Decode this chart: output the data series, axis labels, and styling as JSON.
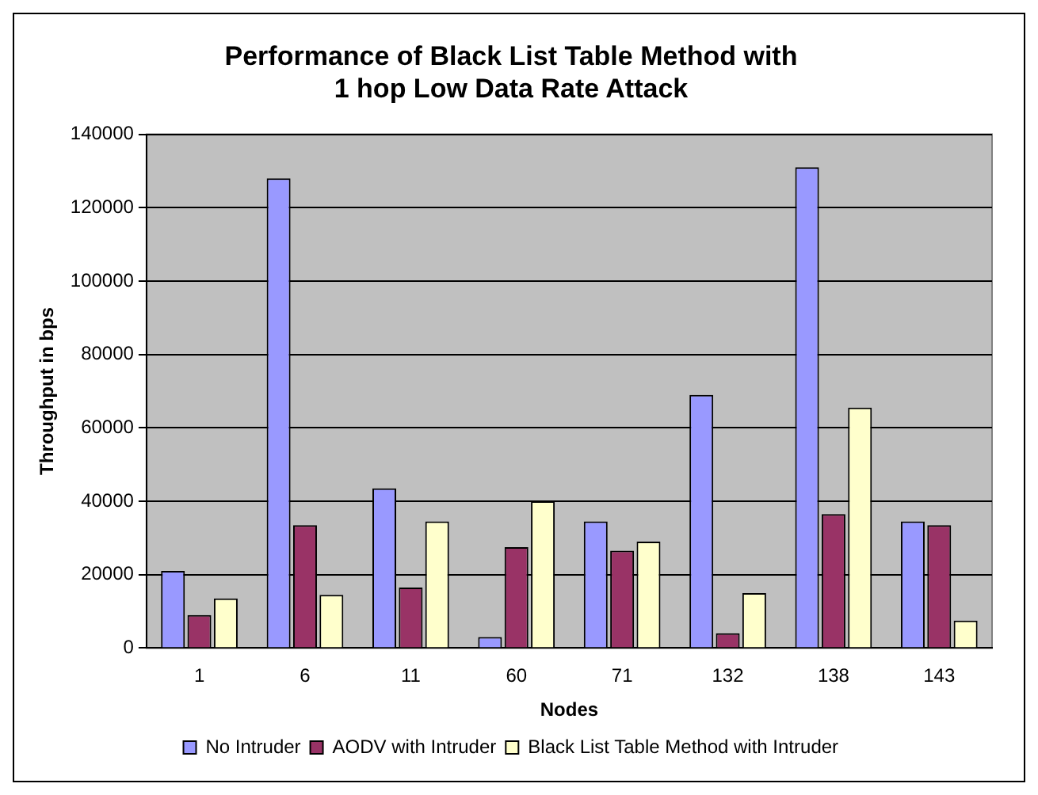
{
  "chart_data": {
    "type": "bar",
    "title": "Performance of Black List Table Method with\n1 hop Low Data Rate Attack",
    "xlabel": "Nodes",
    "ylabel": "Throughput in bps",
    "categories": [
      "1",
      "6",
      "11",
      "60",
      "71",
      "132",
      "138",
      "143"
    ],
    "series": [
      {
        "name": "No Intruder",
        "color": "#9999ff",
        "values": [
          21000,
          128000,
          43500,
          3000,
          34500,
          69000,
          131000,
          34500
        ]
      },
      {
        "name": "AODV with Intruder",
        "color": "#993366",
        "values": [
          9000,
          33500,
          16500,
          27500,
          26500,
          4000,
          36500,
          33500
        ]
      },
      {
        "name": "Black List Table Method with Intruder",
        "color": "#ffffcc",
        "values": [
          13500,
          14500,
          34500,
          40000,
          29000,
          15000,
          65500,
          7500
        ]
      }
    ],
    "ylim": [
      0,
      140000
    ],
    "yticks": [
      0,
      20000,
      40000,
      60000,
      80000,
      100000,
      120000,
      140000
    ],
    "grid": "y",
    "legend": "bottom"
  }
}
